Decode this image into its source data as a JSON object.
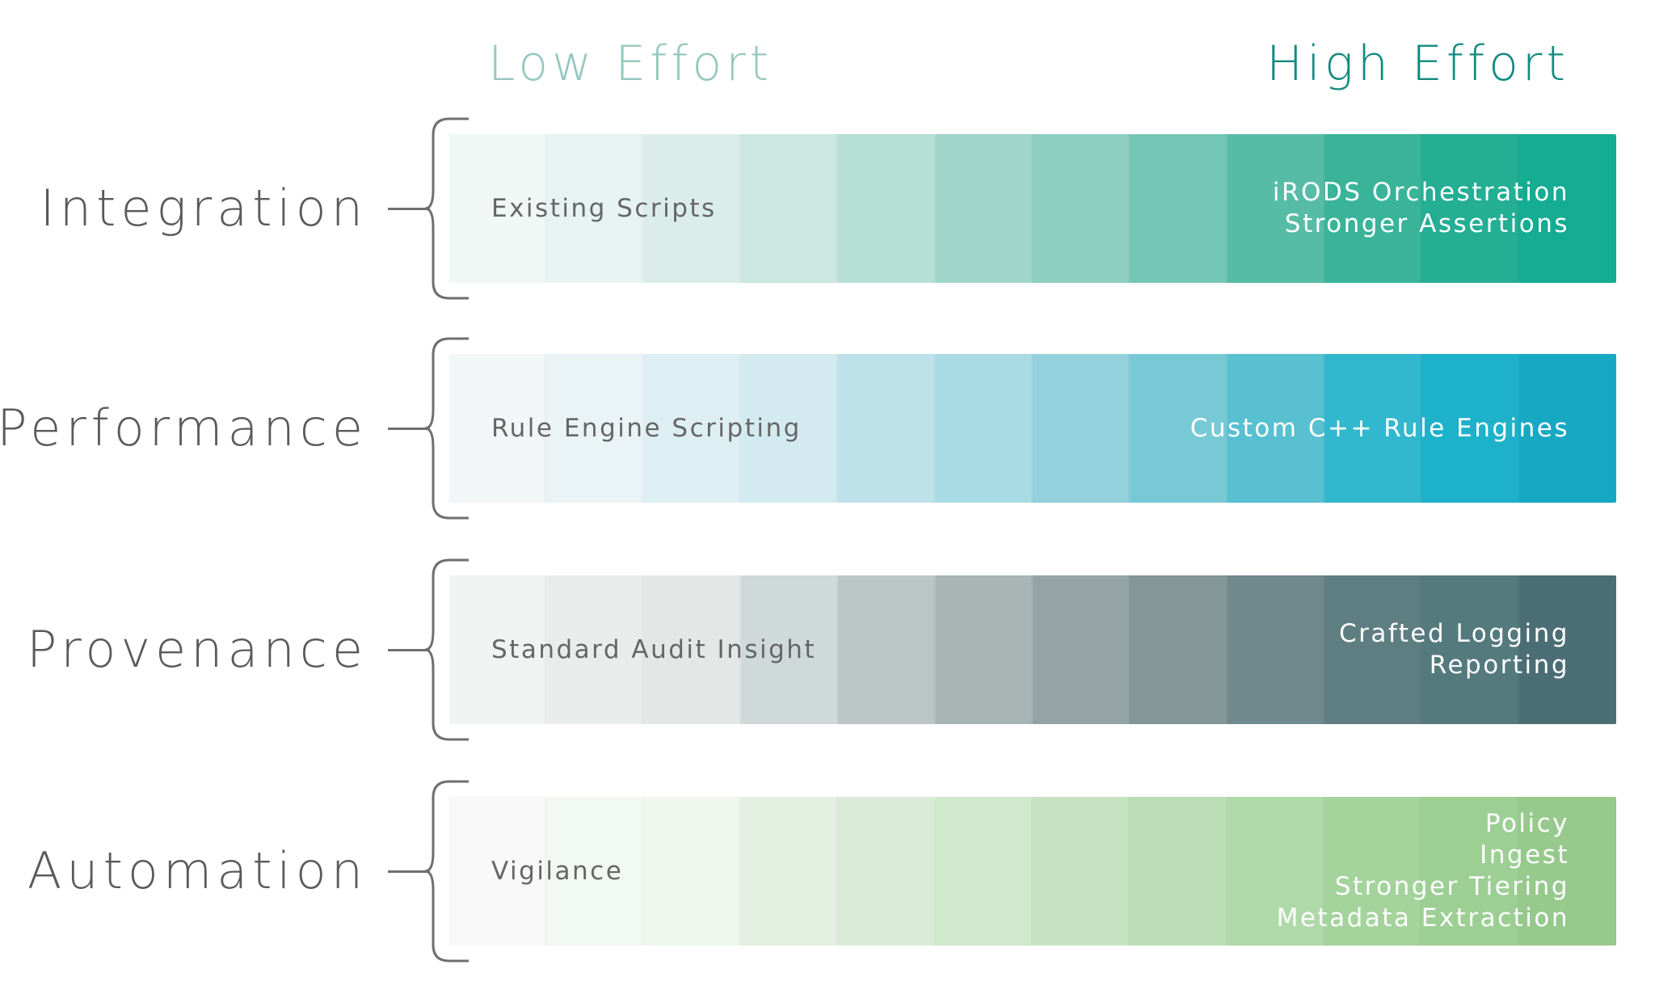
{
  "header": {
    "low_label": "Low Effort",
    "high_label": "High Effort",
    "low_color": "#95c7bf",
    "high_color": "#128a7f"
  },
  "rows": [
    {
      "label": "Integration",
      "low_text": "Existing Scripts",
      "high_text": [
        "iRODS Orchestration",
        "Stronger Assertions"
      ],
      "colors": [
        "#f0f7f4",
        "#e7f3f1",
        "#daede9",
        "#cae7e0",
        "#b6dfd5",
        "#a1d6ca",
        "#8dcebf",
        "#74c6b4",
        "#57bca6",
        "#39b499",
        "#24ae94",
        "#14ac92"
      ]
    },
    {
      "label": "Performance",
      "low_text": "Rule Engine Scripting",
      "high_text": [
        "Custom C++ Rule Engines"
      ],
      "colors": [
        "#f3f6f6",
        "#eaf4f6",
        "#deeff3",
        "#d3ebf0",
        "#bde2ea",
        "#a8dbe4",
        "#93d1dc",
        "#78c9d6",
        "#58c0d1",
        "#31b8ce",
        "#1db2ca",
        "#17a9c4"
      ]
    },
    {
      "label": "Provenance",
      "low_text": "Standard Audit Insight",
      "high_text": [
        "Crafted Logging",
        "Reporting"
      ],
      "colors": [
        "#f0f3f2",
        "#e8edec",
        "#e3e8e7",
        "#d0d9d9",
        "#bcc5c6",
        "#a9b4b5",
        "#94a4a6",
        "#839698",
        "#6f898c",
        "#5f7e82",
        "#557a7e",
        "#4a6e74"
      ]
    },
    {
      "label": "Automation",
      "low_text": "Vigilance",
      "high_text": [
        "Policy",
        "Ingest",
        "Stronger Tiering",
        "Metadata Extraction"
      ],
      "colors": [
        "#f7f8f7",
        "#f2f8f2",
        "#eef6ee",
        "#e3f0e1",
        "#daecd7",
        "#d0e8cc",
        "#c6e3c1",
        "#bcdeb6",
        "#b0d9a9",
        "#a4d39c",
        "#9dcf94",
        "#97c98d"
      ]
    }
  ]
}
